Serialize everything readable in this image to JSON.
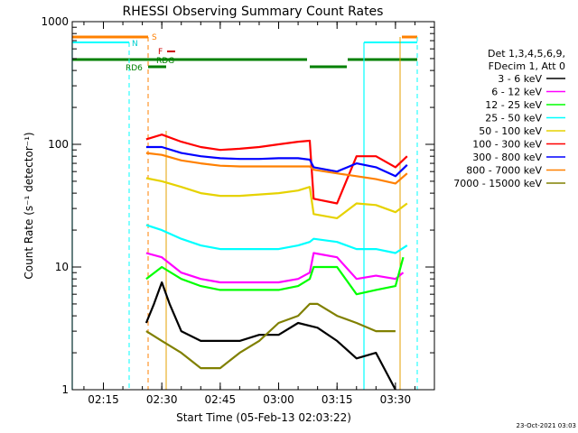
{
  "chart_data": {
    "type": "line",
    "title": "RHESSI Observing Summary Count Rates",
    "xlabel": "Start Time (05-Feb-13 02:03:22)",
    "ylabel": "Count Rate (s⁻¹ detector⁻¹)",
    "y_scale": "log",
    "ylim": [
      1,
      1000
    ],
    "xlim_minutes": [
      "02:07",
      "03:40"
    ],
    "x_ticks": [
      "02:15",
      "02:30",
      "02:45",
      "03:00",
      "03:15",
      "03:30"
    ],
    "y_ticks": [
      "1",
      "10",
      "100",
      "1000"
    ],
    "legend_header": [
      "Det 1,3,4,5,6,9,",
      "FDecim 1, Att 0"
    ],
    "series": [
      {
        "name": "3 - 6 keV",
        "color": "#000000",
        "points": [
          [
            "02:26",
            3.5
          ],
          [
            "02:28",
            5
          ],
          [
            "02:30",
            7.5
          ],
          [
            "02:32",
            5
          ],
          [
            "02:35",
            3
          ],
          [
            "02:40",
            2.5
          ],
          [
            "02:45",
            2.5
          ],
          [
            "02:50",
            2.5
          ],
          [
            "02:55",
            2.8
          ],
          [
            "03:00",
            2.8
          ],
          [
            "03:05",
            3.5
          ],
          [
            "03:10",
            3.2
          ],
          [
            "03:15",
            2.5
          ],
          [
            "03:20",
            1.8
          ],
          [
            "03:25",
            2
          ],
          [
            "03:30",
            1
          ]
        ]
      },
      {
        "name": "6 - 12 keV",
        "color": "#ff00ff",
        "points": [
          [
            "02:26",
            13
          ],
          [
            "02:30",
            12
          ],
          [
            "02:35",
            9
          ],
          [
            "02:40",
            8
          ],
          [
            "02:45",
            7.5
          ],
          [
            "02:50",
            7.5
          ],
          [
            "02:55",
            7.5
          ],
          [
            "03:00",
            7.5
          ],
          [
            "03:05",
            8
          ],
          [
            "03:08",
            9
          ],
          [
            "03:09",
            13
          ],
          [
            "03:15",
            12
          ],
          [
            "03:20",
            8
          ],
          [
            "03:25",
            8.5
          ],
          [
            "03:30",
            8
          ],
          [
            "03:32",
            9
          ]
        ]
      },
      {
        "name": "12 - 25 keV",
        "color": "#00ff00",
        "points": [
          [
            "02:26",
            8
          ],
          [
            "02:30",
            10
          ],
          [
            "02:35",
            8
          ],
          [
            "02:40",
            7
          ],
          [
            "02:45",
            6.5
          ],
          [
            "02:50",
            6.5
          ],
          [
            "02:55",
            6.5
          ],
          [
            "03:00",
            6.5
          ],
          [
            "03:05",
            7
          ],
          [
            "03:08",
            8
          ],
          [
            "03:09",
            10
          ],
          [
            "03:15",
            10
          ],
          [
            "03:20",
            6
          ],
          [
            "03:25",
            6.5
          ],
          [
            "03:30",
            7
          ],
          [
            "03:32",
            12
          ]
        ]
      },
      {
        "name": "25 - 50 keV",
        "color": "#00ffff",
        "points": [
          [
            "02:26",
            22
          ],
          [
            "02:30",
            20
          ],
          [
            "02:35",
            17
          ],
          [
            "02:40",
            15
          ],
          [
            "02:45",
            14
          ],
          [
            "02:50",
            14
          ],
          [
            "02:55",
            14
          ],
          [
            "03:00",
            14
          ],
          [
            "03:05",
            15
          ],
          [
            "03:08",
            16
          ],
          [
            "03:09",
            17
          ],
          [
            "03:15",
            16
          ],
          [
            "03:20",
            14
          ],
          [
            "03:25",
            14
          ],
          [
            "03:30",
            13
          ],
          [
            "03:33",
            15
          ]
        ]
      },
      {
        "name": "50 - 100 keV",
        "color": "#e6d200",
        "points": [
          [
            "02:26",
            53
          ],
          [
            "02:30",
            50
          ],
          [
            "02:35",
            45
          ],
          [
            "02:40",
            40
          ],
          [
            "02:45",
            38
          ],
          [
            "02:50",
            38
          ],
          [
            "02:55",
            39
          ],
          [
            "03:00",
            40
          ],
          [
            "03:05",
            42
          ],
          [
            "03:08",
            45
          ],
          [
            "03:09",
            27
          ],
          [
            "03:15",
            25
          ],
          [
            "03:20",
            33
          ],
          [
            "03:25",
            32
          ],
          [
            "03:30",
            28
          ],
          [
            "03:33",
            33
          ]
        ]
      },
      {
        "name": "100 - 300 keV",
        "color": "#ff0000",
        "points": [
          [
            "02:26",
            110
          ],
          [
            "02:30",
            120
          ],
          [
            "02:35",
            105
          ],
          [
            "02:40",
            95
          ],
          [
            "02:45",
            90
          ],
          [
            "02:50",
            92
          ],
          [
            "02:55",
            95
          ],
          [
            "03:00",
            100
          ],
          [
            "03:05",
            105
          ],
          [
            "03:08",
            107
          ],
          [
            "03:09",
            36
          ],
          [
            "03:15",
            33
          ],
          [
            "03:20",
            80
          ],
          [
            "03:25",
            80
          ],
          [
            "03:30",
            65
          ],
          [
            "03:33",
            80
          ]
        ]
      },
      {
        "name": "300 - 800 keV",
        "color": "#0000ff",
        "points": [
          [
            "02:26",
            95
          ],
          [
            "02:30",
            95
          ],
          [
            "02:35",
            85
          ],
          [
            "02:40",
            80
          ],
          [
            "02:45",
            77
          ],
          [
            "02:50",
            76
          ],
          [
            "02:55",
            76
          ],
          [
            "03:00",
            77
          ],
          [
            "03:05",
            77
          ],
          [
            "03:08",
            75
          ],
          [
            "03:09",
            65
          ],
          [
            "03:15",
            60
          ],
          [
            "03:20",
            70
          ],
          [
            "03:25",
            65
          ],
          [
            "03:30",
            55
          ],
          [
            "03:33",
            68
          ]
        ]
      },
      {
        "name": "800 - 7000 keV",
        "color": "#ff8000",
        "points": [
          [
            "02:26",
            85
          ],
          [
            "02:30",
            82
          ],
          [
            "02:35",
            74
          ],
          [
            "02:40",
            70
          ],
          [
            "02:45",
            67
          ],
          [
            "02:50",
            66
          ],
          [
            "02:55",
            66
          ],
          [
            "03:00",
            66
          ],
          [
            "03:05",
            66
          ],
          [
            "03:08",
            66
          ],
          [
            "03:09",
            62
          ],
          [
            "03:15",
            58
          ],
          [
            "03:20",
            55
          ],
          [
            "03:25",
            52
          ],
          [
            "03:30",
            48
          ],
          [
            "03:33",
            58
          ]
        ]
      },
      {
        "name": "7000 - 15000 keV",
        "color": "#808000",
        "points": [
          [
            "02:26",
            3
          ],
          [
            "02:30",
            2.5
          ],
          [
            "02:35",
            2
          ],
          [
            "02:40",
            1.5
          ],
          [
            "02:45",
            1.5
          ],
          [
            "02:50",
            2
          ],
          [
            "02:55",
            2.5
          ],
          [
            "03:00",
            3.5
          ],
          [
            "03:05",
            4
          ],
          [
            "03:08",
            5
          ],
          [
            "03:10",
            5
          ],
          [
            "03:15",
            4
          ],
          [
            "03:20",
            3.5
          ],
          [
            "03:25",
            3
          ],
          [
            "03:30",
            3
          ]
        ]
      }
    ],
    "flag_labels": [
      "S",
      "N",
      "F",
      "RDG",
      "RD6"
    ],
    "timestamp": "23-Oct-2021 03:03"
  }
}
